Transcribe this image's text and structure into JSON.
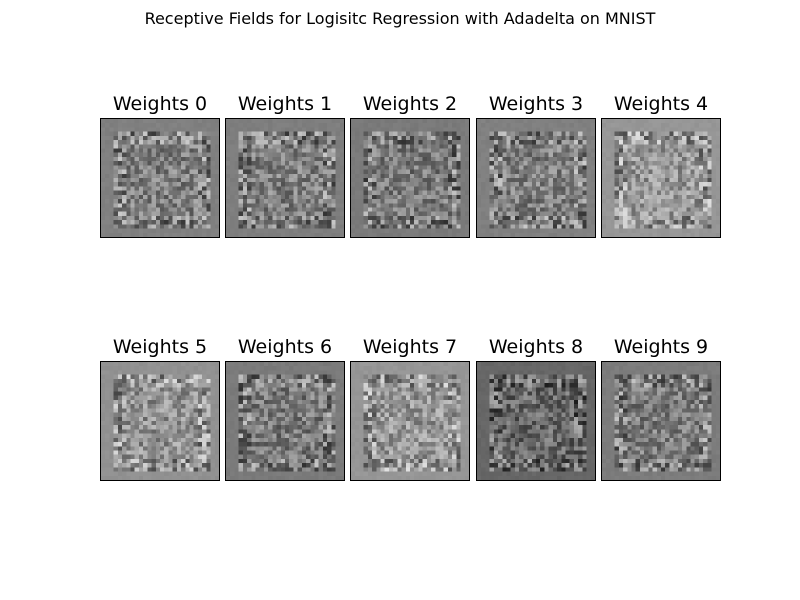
{
  "chart_data": {
    "type": "heatmap",
    "title": "Receptive Fields for Logisitc Regression with Adadelta on MNIST",
    "colormap": "gray",
    "grid_size": [
      28,
      28
    ],
    "layout": {
      "rows": 2,
      "cols": 5
    },
    "panels": [
      {
        "index": 0,
        "title": "Weights 0",
        "background_gray": 128
      },
      {
        "index": 1,
        "title": "Weights 1",
        "background_gray": 126
      },
      {
        "index": 2,
        "title": "Weights 2",
        "background_gray": 122
      },
      {
        "index": 3,
        "title": "Weights 3",
        "background_gray": 128
      },
      {
        "index": 4,
        "title": "Weights 4",
        "background_gray": 150
      },
      {
        "index": 5,
        "title": "Weights 5",
        "background_gray": 145
      },
      {
        "index": 6,
        "title": "Weights 6",
        "background_gray": 122
      },
      {
        "index": 7,
        "title": "Weights 7",
        "background_gray": 150
      },
      {
        "index": 8,
        "title": "Weights 8",
        "background_gray": 102
      },
      {
        "index": 9,
        "title": "Weights 9",
        "background_gray": 124
      }
    ]
  }
}
